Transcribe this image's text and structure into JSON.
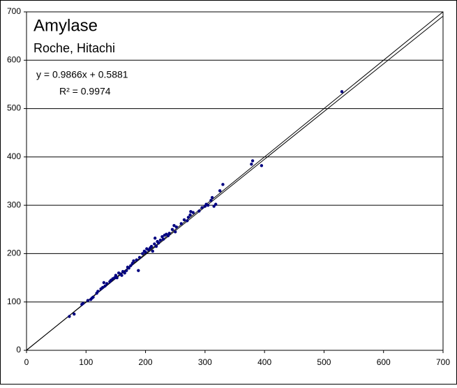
{
  "chart_data": {
    "type": "scatter",
    "title": "Amylase",
    "subtitle": "Roche, Hitachi",
    "annotations": [
      "y = 0.9866x + 0.5881",
      "R² = 0.9974"
    ],
    "color": "#000080",
    "x": [
      72,
      80,
      93,
      95,
      103,
      108,
      110,
      112,
      118,
      120,
      125,
      128,
      130,
      132,
      135,
      140,
      142,
      145,
      148,
      150,
      152,
      155,
      158,
      160,
      162,
      165,
      168,
      170,
      172,
      175,
      178,
      180,
      185,
      188,
      190,
      195,
      198,
      200,
      202,
      205,
      208,
      210,
      212,
      215,
      216,
      218,
      220,
      222,
      225,
      228,
      230,
      232,
      235,
      238,
      240,
      245,
      248,
      250,
      252,
      260,
      265,
      270,
      272,
      275,
      276,
      280,
      290,
      295,
      300,
      302,
      305,
      310,
      312,
      315,
      318,
      325,
      330,
      378,
      380,
      395,
      530
    ],
    "y": [
      70,
      75,
      95,
      97,
      103,
      105,
      108,
      110,
      118,
      122,
      127,
      130,
      140,
      133,
      138,
      142,
      145,
      148,
      150,
      155,
      150,
      160,
      158,
      155,
      163,
      160,
      165,
      172,
      170,
      175,
      180,
      185,
      187,
      165,
      192,
      200,
      205,
      203,
      210,
      208,
      212,
      215,
      205,
      220,
      232,
      215,
      225,
      222,
      228,
      235,
      230,
      238,
      240,
      237,
      242,
      250,
      258,
      245,
      255,
      262,
      270,
      268,
      275,
      280,
      287,
      285,
      288,
      295,
      298,
      302,
      300,
      310,
      316,
      298,
      302,
      330,
      343,
      385,
      392,
      382,
      535
    ],
    "lines": [
      {
        "slope": 1,
        "intercept": 0
      },
      {
        "slope": 0.9866,
        "intercept": 0.5881
      }
    ],
    "xlim": [
      0,
      700
    ],
    "ylim": [
      0,
      700
    ],
    "xticks": [
      0,
      100,
      200,
      300,
      400,
      500,
      600,
      700
    ],
    "yticks": [
      0,
      100,
      200,
      300,
      400,
      500,
      600,
      700
    ],
    "grid": true
  }
}
